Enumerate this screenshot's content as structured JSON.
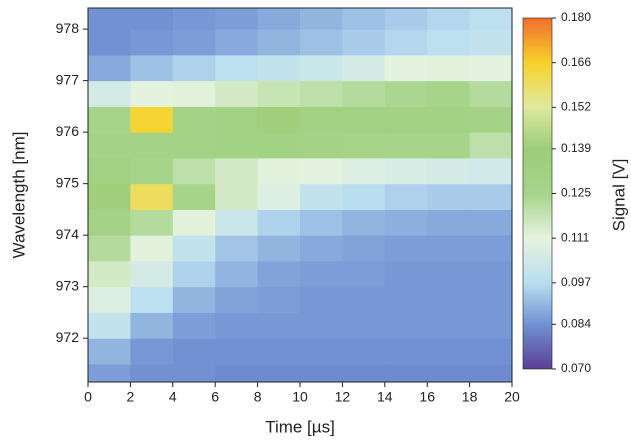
{
  "chart_data": {
    "type": "heatmap",
    "x_label": "Time [µs]",
    "y_label": "Wavelength [nm]",
    "colorbar_label": "Signal [V]",
    "xlim": [
      0,
      20
    ],
    "xticks": [
      0,
      2,
      4,
      6,
      8,
      10,
      12,
      14,
      16,
      18,
      20
    ],
    "ylim": [
      971.15,
      978.41
    ],
    "yticks": [
      972,
      973,
      974,
      975,
      976,
      977,
      978
    ],
    "xbins": [
      0,
      2,
      4,
      6,
      8,
      10,
      12,
      14,
      16,
      18,
      20
    ],
    "ybins": [
      971.15,
      971.5,
      972,
      972.5,
      973,
      973.5,
      974,
      974.5,
      975,
      975.5,
      976,
      976.5,
      977,
      977.5,
      978,
      978.41
    ],
    "z": [
      [
        0.086,
        0.084,
        0.084,
        0.083,
        0.083,
        0.083,
        0.083,
        0.083,
        0.083,
        0.083
      ],
      [
        0.09,
        0.085,
        0.084,
        0.084,
        0.084,
        0.084,
        0.084,
        0.084,
        0.084,
        0.084
      ],
      [
        0.1,
        0.09,
        0.086,
        0.085,
        0.085,
        0.085,
        0.085,
        0.085,
        0.085,
        0.085
      ],
      [
        0.108,
        0.098,
        0.09,
        0.087,
        0.086,
        0.085,
        0.085,
        0.085,
        0.085,
        0.085
      ],
      [
        0.115,
        0.105,
        0.095,
        0.09,
        0.087,
        0.086,
        0.086,
        0.085,
        0.085,
        0.085
      ],
      [
        0.122,
        0.112,
        0.1,
        0.093,
        0.09,
        0.088,
        0.087,
        0.086,
        0.086,
        0.086
      ],
      [
        0.128,
        0.122,
        0.112,
        0.102,
        0.095,
        0.092,
        0.09,
        0.089,
        0.088,
        0.088
      ],
      [
        0.14,
        0.16,
        0.125,
        0.115,
        0.108,
        0.1,
        0.097,
        0.095,
        0.094,
        0.094
      ],
      [
        0.132,
        0.125,
        0.12,
        0.115,
        0.112,
        0.11,
        0.108,
        0.106,
        0.105,
        0.104
      ],
      [
        0.128,
        0.128,
        0.128,
        0.13,
        0.13,
        0.128,
        0.127,
        0.126,
        0.125,
        0.12
      ],
      [
        0.125,
        0.165,
        0.128,
        0.13,
        0.14,
        0.132,
        0.132,
        0.131,
        0.13,
        0.128
      ],
      [
        0.105,
        0.11,
        0.112,
        0.115,
        0.118,
        0.12,
        0.122,
        0.124,
        0.125,
        0.122
      ],
      [
        0.088,
        0.092,
        0.095,
        0.098,
        0.1,
        0.102,
        0.105,
        0.11,
        0.112,
        0.11
      ],
      [
        0.084,
        0.085,
        0.086,
        0.088,
        0.09,
        0.092,
        0.094,
        0.096,
        0.098,
        0.1
      ],
      [
        0.084,
        0.084,
        0.085,
        0.086,
        0.088,
        0.09,
        0.092,
        0.094,
        0.096,
        0.098
      ]
    ],
    "colorbar_ticks": [
      {
        "value": 0.07,
        "label": "0.070"
      },
      0.084,
      0.097,
      0.111,
      0.125,
      0.139,
      0.152,
      0.166,
      {
        "value": 0.18,
        "label": "0.180"
      }
    ],
    "colorscale": [
      "#5a3e96",
      "#7191d3",
      "#b9def0",
      "#e7f3df",
      "#a6d48b",
      "#9ccd78",
      "#dfe9a0",
      "#f7d22c",
      "#f06d2c"
    ]
  }
}
